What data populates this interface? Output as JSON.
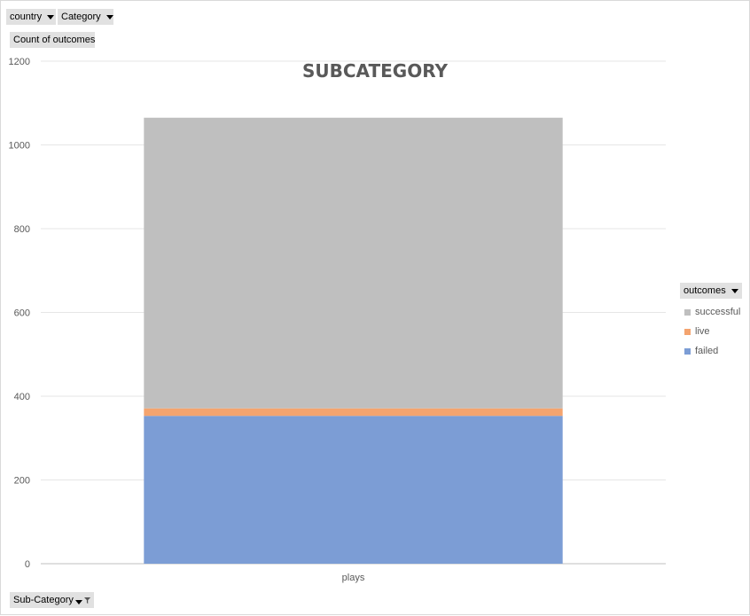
{
  "filters": {
    "country_label": "country",
    "category_label": "Category",
    "subcategory_label": "Sub-Category"
  },
  "values_label": "Count of outcomes",
  "legend": {
    "title": "outcomes",
    "items": [
      {
        "label": "successful",
        "color": "#bfbfbf"
      },
      {
        "label": "live",
        "color": "#f4a46f"
      },
      {
        "label": "failed",
        "color": "#7c9dd5"
      }
    ]
  },
  "chart_data": {
    "type": "bar",
    "stacked": true,
    "title": "SUBCATEGORY",
    "categories": [
      "plays"
    ],
    "series": [
      {
        "name": "failed",
        "values": [
          353
        ],
        "color": "#7c9dd5"
      },
      {
        "name": "live",
        "values": [
          18
        ],
        "color": "#f4a46f"
      },
      {
        "name": "successful",
        "values": [
          694
        ],
        "color": "#bfbfbf"
      }
    ],
    "ylim": [
      0,
      1200
    ],
    "yticks": [
      0,
      200,
      400,
      600,
      800,
      1000,
      1200
    ],
    "grid": true,
    "legend_position": "right"
  }
}
